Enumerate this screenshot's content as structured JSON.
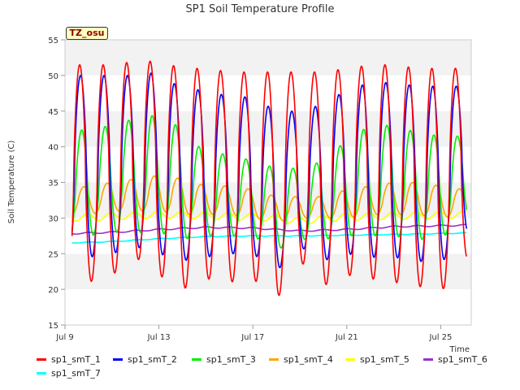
{
  "chart_data": {
    "type": "line",
    "title": "SP1 Soil Temperature Profile",
    "xlabel": "Time",
    "ylabel": "Soil Temperature (C)",
    "badge": "TZ_osu",
    "xlim": [
      9.0,
      26.3
    ],
    "ylim": [
      15,
      55
    ],
    "x_unit": "day of July",
    "x_ticks": [
      {
        "value": 9,
        "label": "Jul 9"
      },
      {
        "value": 13,
        "label": "Jul 13"
      },
      {
        "value": 17,
        "label": "Jul 17"
      },
      {
        "value": 21,
        "label": "Jul 21"
      },
      {
        "value": 25,
        "label": "Jul 25"
      }
    ],
    "y_ticks": [
      15,
      20,
      25,
      30,
      35,
      40,
      45,
      50,
      55
    ],
    "grid": "alternating horizontal bands",
    "legend_position": "bottom",
    "daily_peaks": {
      "days": [
        9,
        10,
        11,
        12,
        13,
        14,
        15,
        16,
        17,
        18,
        19,
        20,
        21,
        22,
        23,
        24,
        25,
        26
      ],
      "sp1_smT_1": [
        51.5,
        51.5,
        51.5,
        52,
        52,
        51,
        51,
        50.5,
        50.5,
        50.5,
        50.5,
        50.5,
        51,
        51.5,
        51.5,
        51,
        51,
        51
      ],
      "sp1_smT_2": [
        50,
        50,
        50,
        50,
        50.5,
        48,
        48,
        47,
        47,
        45,
        45,
        46,
        48,
        49,
        49,
        48.5,
        48.5,
        48.5
      ],
      "sp1_smT_3": [
        42,
        42.5,
        43,
        44,
        44.5,
        42.5,
        39,
        39,
        38,
        37,
        37,
        38,
        41,
        43,
        43,
        42,
        41.5,
        41.5
      ],
      "sp1_smT_4": [
        34,
        34.5,
        35,
        35.5,
        36,
        35.5,
        34.5,
        34.5,
        34,
        33,
        33,
        33,
        34,
        34.5,
        35,
        35,
        34.5,
        34
      ]
    },
    "daily_troughs": {
      "days": [
        9,
        10,
        11,
        12,
        13,
        14,
        15,
        16,
        17,
        18,
        19,
        20,
        21,
        22,
        23,
        24,
        25,
        26
      ],
      "sp1_smT_1": [
        21,
        21,
        22,
        24.5,
        22,
        20,
        21.5,
        21,
        21.5,
        18.5,
        24,
        20.5,
        22,
        21.5,
        21,
        20.5,
        19.5,
        24.5
      ],
      "sp1_smT_2": [
        24.5,
        24.5,
        25,
        26,
        25,
        24,
        24.5,
        25,
        25,
        22.5,
        26,
        24,
        25,
        24.5,
        24.5,
        24,
        23.5,
        28
      ],
      "sp1_smT_3": [
        27,
        27.5,
        28,
        28,
        28,
        27,
        27.5,
        27.5,
        27.5,
        25.5,
        27,
        27,
        27.5,
        27.5,
        27.5,
        27,
        27,
        30
      ],
      "sp1_smT_4": [
        30.5,
        30.5,
        31,
        31,
        31,
        30.5,
        30.5,
        30.5,
        30,
        29.5,
        30,
        30,
        30,
        30.5,
        30.5,
        30.5,
        30,
        30.5
      ]
    },
    "series": [
      {
        "name": "sp1_smT_1",
        "color": "#ff0000",
        "phase": 0.625
      },
      {
        "name": "sp1_smT_2",
        "color": "#0000ff",
        "phase": 0.66
      },
      {
        "name": "sp1_smT_3",
        "color": "#00ee00",
        "phase": 0.71
      },
      {
        "name": "sp1_smT_4",
        "color": "#ffa500",
        "phase": 0.8
      },
      {
        "name": "sp1_smT_5",
        "color": "#ffff00",
        "phase": 0.95,
        "amplitude": 0.5,
        "baseline": {
          "x": [
            9,
            13,
            17,
            19,
            21,
            26.1
          ],
          "y": [
            30,
            30.5,
            30.2,
            29.6,
            30.2,
            30.5
          ]
        }
      },
      {
        "name": "sp1_smT_6",
        "color": "#9a32cd",
        "phase": 0.0,
        "amplitude": 0.1,
        "baseline": {
          "x": [
            9,
            11,
            13,
            15,
            17,
            19,
            21,
            23,
            26.1
          ],
          "y": [
            27.8,
            28,
            28.4,
            28.7,
            28.6,
            28.2,
            28.4,
            28.8,
            29
          ]
        }
      },
      {
        "name": "sp1_smT_7",
        "color": "#00ffff",
        "phase": 0.0,
        "amplitude": 0.05,
        "baseline": {
          "x": [
            9,
            11,
            13,
            15,
            17,
            19,
            21,
            23,
            26.1
          ],
          "y": [
            26.5,
            26.7,
            27.1,
            27.4,
            27.5,
            27.5,
            27.6,
            27.7,
            27.9
          ]
        }
      }
    ]
  }
}
